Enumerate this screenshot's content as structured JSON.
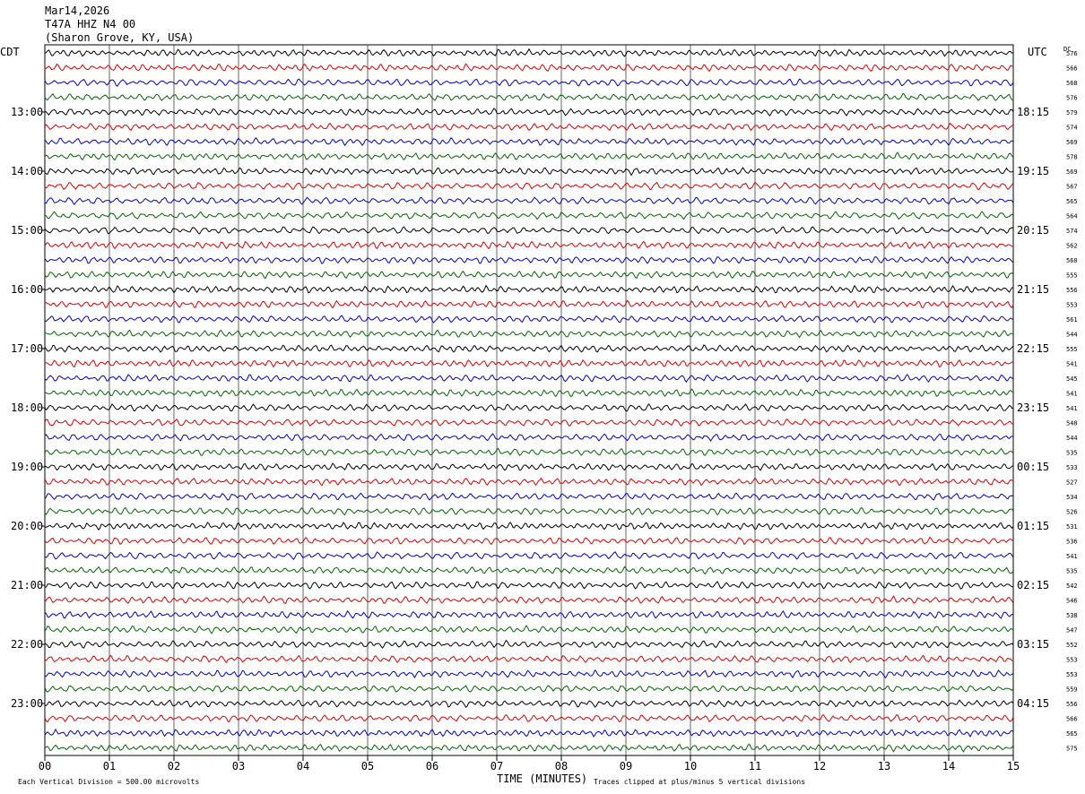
{
  "header": {
    "line1": "Mar14,2026",
    "line2": "T47A HHZ N4 00",
    "line3": "(Sharon Grove, KY, USA)"
  },
  "left_axis_title": "CDT",
  "right_axis_title": "UTC",
  "dc_title": "DC",
  "x_axis_title": "TIME (MINUTES)",
  "footer": {
    "scale_note": "Each Vertical Division =  500.00 microvolts",
    "clip_note": "Traces clipped at plus/minus 5 vertical divisions"
  },
  "colors": {
    "trace": [
      "#000000",
      "#dd0000",
      "#0000cc",
      "#006600"
    ],
    "grid": "#000000"
  },
  "chart_data": {
    "type": "line",
    "subtype": "helicorder",
    "xlabel": "TIME (MINUTES)",
    "xlim": [
      0,
      15
    ],
    "x_ticks": [
      "00",
      "01",
      "02",
      "03",
      "04",
      "05",
      "06",
      "07",
      "08",
      "09",
      "10",
      "11",
      "12",
      "13",
      "14",
      "15"
    ],
    "lines_per_hour": 4,
    "left_hour_labels": [
      "13:00",
      "14:00",
      "15:00",
      "16:00",
      "17:00",
      "18:00",
      "19:00",
      "20:00",
      "21:00",
      "22:00",
      "23:00"
    ],
    "right_hour_labels": [
      "18:15",
      "19:15",
      "20:15",
      "21:15",
      "22:15",
      "23:15",
      "00:15",
      "01:15",
      "02:15",
      "03:15",
      "04:15"
    ],
    "dc_offsets": [
      576,
      566,
      568,
      576,
      579,
      574,
      569,
      578,
      569,
      567,
      565,
      564,
      574,
      562,
      560,
      555,
      556,
      553,
      561,
      544,
      555,
      541,
      545,
      541,
      541,
      548,
      544,
      535,
      533,
      527,
      534,
      526,
      531,
      536,
      541,
      535,
      542,
      546,
      538,
      547,
      552,
      553,
      553,
      559,
      556,
      566,
      565,
      575
    ],
    "grid": true
  }
}
